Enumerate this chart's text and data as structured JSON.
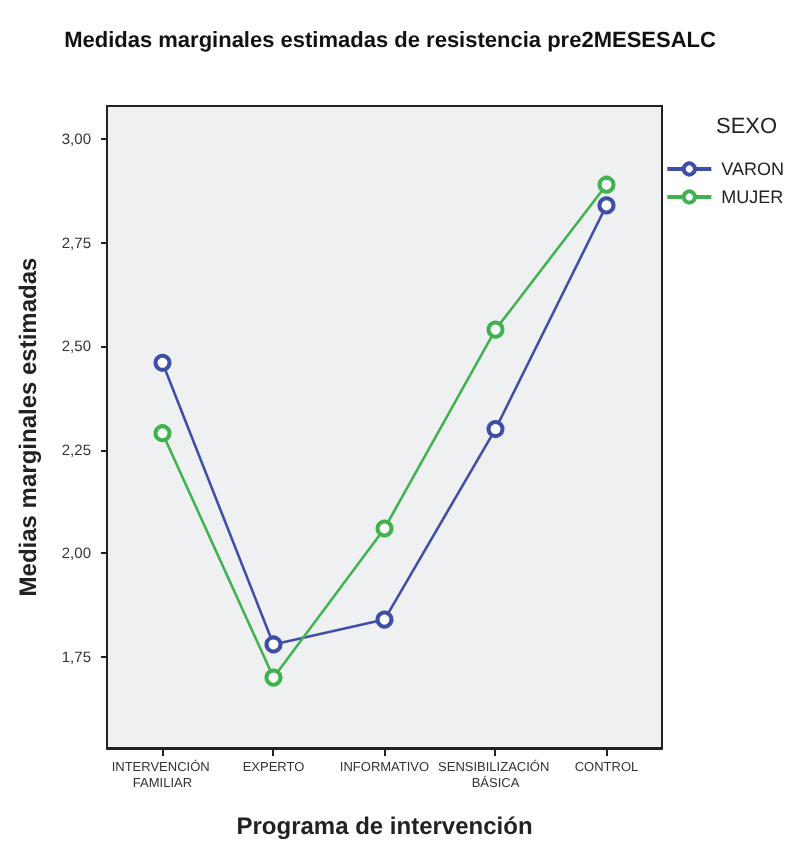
{
  "chart_data": {
    "type": "line",
    "title": "Medidas marginales estimadas de resistencia pre2MESESALC",
    "xlabel": "Programa de intervención",
    "ylabel": "Medias marginales estimadas",
    "legend_title": "SEXO",
    "legend": "top right",
    "marker": "circle",
    "grid": false,
    "categories": [
      "INTERVENCIÓN FAMILIAR",
      "EXPERTO",
      "INFORMATIVO",
      "SENSIBILIZACIÓN BÁSICA",
      "CONTROL"
    ],
    "series": [
      {
        "name": "VARON",
        "color": "#3f4fa8",
        "values": [
          2.46,
          1.78,
          1.84,
          2.3,
          2.84
        ]
      },
      {
        "name": "MUJER",
        "color": "#3fb34f",
        "values": [
          2.29,
          1.7,
          2.06,
          2.54,
          2.89
        ]
      }
    ],
    "ylim": [
      1.53,
      3.08
    ],
    "yticks": [
      {
        "value": 1.75,
        "label": "1,75"
      },
      {
        "value": 2.0,
        "label": "2,00"
      },
      {
        "value": 2.25,
        "label": "2,25"
      },
      {
        "value": 2.5,
        "label": "2,50"
      },
      {
        "value": 2.75,
        "label": "2,75"
      },
      {
        "value": 3.0,
        "label": "3,00"
      }
    ]
  }
}
